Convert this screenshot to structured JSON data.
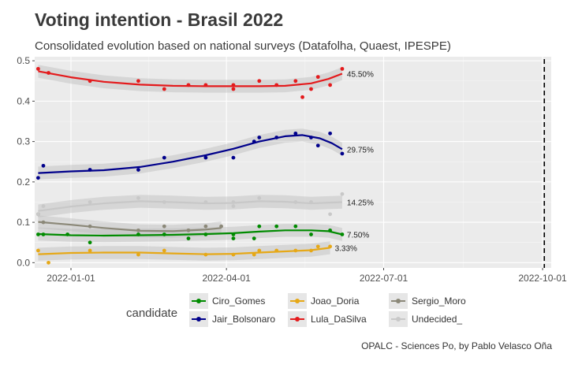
{
  "chart_data": {
    "type": "line",
    "title": "Voting intention - Brasil 2022",
    "subtitle": "Consolidated evolution based on national surveys (Datafolha, Quaest, IPESPE)",
    "caption": "OPALC - Sciences Po, by Pablo Velasco Oña",
    "xlabel": "",
    "ylabel": "",
    "x_ticks": [
      "2022-01-01",
      "2022-04-01",
      "2022-07-01",
      "2022-10-01"
    ],
    "y_ticks": [
      "0.0",
      "0.1",
      "0.2",
      "0.3",
      "0.4",
      "0.5"
    ],
    "xlim": [
      "2021-12-11",
      "2022-10-06"
    ],
    "ylim": [
      -0.013,
      0.51
    ],
    "grid": true,
    "election_line_date": "2022-10-02",
    "legend_title": "candidate",
    "legend_position": "bottom",
    "series": [
      {
        "name": "Ciro_Gomes",
        "color": "#008b00",
        "end_label": "7.50%",
        "points": [
          [
            "2021-12-13",
            0.07
          ],
          [
            "2021-12-16",
            0.07
          ],
          [
            "2021-12-30",
            0.07
          ],
          [
            "2022-01-12",
            0.05
          ],
          [
            "2022-02-09",
            0.07
          ],
          [
            "2022-02-24",
            0.07
          ],
          [
            "2022-03-10",
            0.06
          ],
          [
            "2022-03-20",
            0.07
          ],
          [
            "2022-04-05",
            0.07
          ],
          [
            "2022-04-05",
            0.06
          ],
          [
            "2022-04-17",
            0.06
          ],
          [
            "2022-04-20",
            0.09
          ],
          [
            "2022-04-30",
            0.09
          ],
          [
            "2022-05-11",
            0.09
          ],
          [
            "2022-05-20",
            0.07
          ],
          [
            "2022-05-31",
            0.08
          ],
          [
            "2022-06-07",
            0.07
          ]
        ],
        "smooth": [
          [
            "2021-12-13",
            0.071
          ],
          [
            "2022-01-01",
            0.068
          ],
          [
            "2022-01-20",
            0.067
          ],
          [
            "2022-02-10",
            0.068
          ],
          [
            "2022-03-01",
            0.069
          ],
          [
            "2022-03-20",
            0.071
          ],
          [
            "2022-04-05",
            0.073
          ],
          [
            "2022-04-20",
            0.077
          ],
          [
            "2022-05-05",
            0.08
          ],
          [
            "2022-05-20",
            0.08
          ],
          [
            "2022-05-30",
            0.078
          ],
          [
            "2022-06-07",
            0.07
          ]
        ]
      },
      {
        "name": "Jair_Bolsonaro",
        "color": "#00008b",
        "end_label": "29.75%",
        "points": [
          [
            "2021-12-13",
            0.21
          ],
          [
            "2021-12-16",
            0.24
          ],
          [
            "2022-01-12",
            0.23
          ],
          [
            "2022-02-09",
            0.23
          ],
          [
            "2022-02-24",
            0.26
          ],
          [
            "2022-03-20",
            0.26
          ],
          [
            "2022-04-05",
            0.26
          ],
          [
            "2022-04-17",
            0.3
          ],
          [
            "2022-04-20",
            0.31
          ],
          [
            "2022-04-30",
            0.31
          ],
          [
            "2022-05-11",
            0.32
          ],
          [
            "2022-05-20",
            0.31
          ],
          [
            "2022-05-24",
            0.29
          ],
          [
            "2022-05-31",
            0.32
          ],
          [
            "2022-06-07",
            0.27
          ]
        ],
        "smooth": [
          [
            "2021-12-13",
            0.222
          ],
          [
            "2022-01-01",
            0.226
          ],
          [
            "2022-01-20",
            0.229
          ],
          [
            "2022-02-10",
            0.237
          ],
          [
            "2022-03-01",
            0.25
          ],
          [
            "2022-03-20",
            0.266
          ],
          [
            "2022-04-05",
            0.282
          ],
          [
            "2022-04-20",
            0.3
          ],
          [
            "2022-05-05",
            0.313
          ],
          [
            "2022-05-15",
            0.316
          ],
          [
            "2022-05-25",
            0.308
          ],
          [
            "2022-06-01",
            0.296
          ],
          [
            "2022-06-07",
            0.281
          ]
        ]
      },
      {
        "name": "Joao_Doria",
        "color": "#e6a817",
        "end_label": "3.33%",
        "points": [
          [
            "2021-12-13",
            0.03
          ],
          [
            "2021-12-19",
            0.0
          ],
          [
            "2022-01-12",
            0.03
          ],
          [
            "2022-02-09",
            0.02
          ],
          [
            "2022-02-24",
            0.03
          ],
          [
            "2022-03-20",
            0.02
          ],
          [
            "2022-04-05",
            0.02
          ],
          [
            "2022-04-17",
            0.02
          ],
          [
            "2022-04-20",
            0.03
          ],
          [
            "2022-04-30",
            0.03
          ],
          [
            "2022-05-11",
            0.03
          ],
          [
            "2022-05-20",
            0.03
          ],
          [
            "2022-05-24",
            0.04
          ],
          [
            "2022-05-31",
            0.04
          ]
        ],
        "smooth": [
          [
            "2021-12-13",
            0.021
          ],
          [
            "2022-01-01",
            0.024
          ],
          [
            "2022-01-20",
            0.025
          ],
          [
            "2022-02-10",
            0.025
          ],
          [
            "2022-03-01",
            0.023
          ],
          [
            "2022-03-20",
            0.021
          ],
          [
            "2022-04-05",
            0.022
          ],
          [
            "2022-04-20",
            0.025
          ],
          [
            "2022-05-05",
            0.028
          ],
          [
            "2022-05-20",
            0.031
          ],
          [
            "2022-05-31",
            0.037
          ]
        ]
      },
      {
        "name": "Lula_DaSilva",
        "color": "#e41a1c",
        "end_label": "45.50%",
        "points": [
          [
            "2021-12-13",
            0.48
          ],
          [
            "2021-12-19",
            0.47
          ],
          [
            "2022-01-12",
            0.45
          ],
          [
            "2022-02-09",
            0.45
          ],
          [
            "2022-02-24",
            0.43
          ],
          [
            "2022-03-10",
            0.44
          ],
          [
            "2022-03-20",
            0.44
          ],
          [
            "2022-04-05",
            0.44
          ],
          [
            "2022-04-05",
            0.43
          ],
          [
            "2022-04-20",
            0.45
          ],
          [
            "2022-04-30",
            0.44
          ],
          [
            "2022-05-11",
            0.45
          ],
          [
            "2022-05-15",
            0.41
          ],
          [
            "2022-05-20",
            0.43
          ],
          [
            "2022-05-24",
            0.46
          ],
          [
            "2022-05-31",
            0.44
          ],
          [
            "2022-06-07",
            0.48
          ]
        ],
        "smooth": [
          [
            "2021-12-13",
            0.474
          ],
          [
            "2022-01-01",
            0.459
          ],
          [
            "2022-01-20",
            0.448
          ],
          [
            "2022-02-10",
            0.441
          ],
          [
            "2022-03-01",
            0.438
          ],
          [
            "2022-03-20",
            0.437
          ],
          [
            "2022-04-05",
            0.437
          ],
          [
            "2022-04-20",
            0.437
          ],
          [
            "2022-05-05",
            0.438
          ],
          [
            "2022-05-20",
            0.444
          ],
          [
            "2022-05-30",
            0.455
          ],
          [
            "2022-06-07",
            0.468
          ]
        ]
      },
      {
        "name": "Sergio_Moro",
        "color": "#8b8878",
        "end_label": "",
        "points": [
          [
            "2021-12-13",
            0.12
          ],
          [
            "2021-12-16",
            0.1
          ],
          [
            "2022-01-12",
            0.09
          ],
          [
            "2022-02-09",
            0.08
          ],
          [
            "2022-02-24",
            0.09
          ],
          [
            "2022-03-10",
            0.08
          ],
          [
            "2022-03-20",
            0.09
          ],
          [
            "2022-03-29",
            0.09
          ]
        ],
        "smooth": [
          [
            "2021-12-13",
            0.101
          ],
          [
            "2022-01-01",
            0.094
          ],
          [
            "2022-01-20",
            0.086
          ],
          [
            "2022-02-10",
            0.079
          ],
          [
            "2022-03-01",
            0.078
          ],
          [
            "2022-03-20",
            0.082
          ],
          [
            "2022-03-29",
            0.086
          ]
        ]
      },
      {
        "name": "Undecided_",
        "color": "#c8c8c8",
        "end_label": "14.25%",
        "points": [
          [
            "2021-12-13",
            0.12
          ],
          [
            "2021-12-16",
            0.14
          ],
          [
            "2022-01-12",
            0.15
          ],
          [
            "2022-02-09",
            0.16
          ],
          [
            "2022-02-24",
            0.15
          ],
          [
            "2022-03-20",
            0.15
          ],
          [
            "2022-04-05",
            0.15
          ],
          [
            "2022-04-05",
            0.14
          ],
          [
            "2022-04-20",
            0.16
          ],
          [
            "2022-05-11",
            0.15
          ],
          [
            "2022-05-20",
            0.15
          ],
          [
            "2022-05-31",
            0.12
          ],
          [
            "2022-06-07",
            0.17
          ]
        ],
        "smooth": [
          [
            "2021-12-13",
            0.128
          ],
          [
            "2022-01-01",
            0.139
          ],
          [
            "2022-01-20",
            0.147
          ],
          [
            "2022-02-10",
            0.152
          ],
          [
            "2022-03-01",
            0.15
          ],
          [
            "2022-03-20",
            0.147
          ],
          [
            "2022-04-05",
            0.148
          ],
          [
            "2022-04-20",
            0.152
          ],
          [
            "2022-05-05",
            0.151
          ],
          [
            "2022-05-20",
            0.147
          ],
          [
            "2022-06-07",
            0.15
          ]
        ]
      }
    ]
  }
}
